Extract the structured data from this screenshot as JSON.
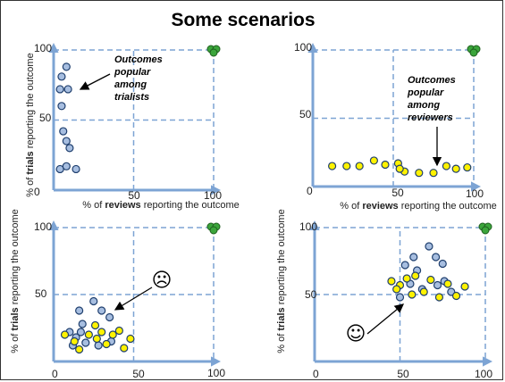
{
  "slide": {
    "title": "Some scenarios",
    "colors": {
      "axis": "#7DA4D4",
      "blue_point": "#A7BEE0",
      "yellow_point": "#FFF200",
      "green_point": "#3BA53B",
      "point_stroke": "#1F3F6E"
    }
  },
  "chart_data": [
    {
      "type": "scatter",
      "ylabel_parts": [
        "% of ",
        "trials",
        " reporting the outcome"
      ],
      "xlabel_parts": [
        "% of ",
        "reviews",
        " reporting the outcome"
      ],
      "xlim": [
        0,
        100
      ],
      "ylim": [
        0,
        100
      ],
      "ticks": {
        "origin": "0",
        "x_mid": "50",
        "x_max": "100",
        "y_mid": "50",
        "y_max": "100"
      },
      "annotation": {
        "lines": [
          "Outcomes",
          "popular",
          "among",
          "trialists"
        ]
      },
      "series": [
        {
          "color": "blue",
          "points": [
            [
              8,
              88
            ],
            [
              5,
              81
            ],
            [
              4,
              72
            ],
            [
              9,
              72
            ],
            [
              5,
              60
            ],
            [
              6,
              42
            ],
            [
              8,
              35
            ],
            [
              10,
              30
            ],
            [
              4,
              15
            ],
            [
              8,
              17
            ],
            [
              14,
              15
            ]
          ]
        },
        {
          "color": "green",
          "points": [
            [
              100,
              100
            ]
          ]
        }
      ]
    },
    {
      "type": "scatter",
      "xlabel_parts": [
        "% of ",
        "reviews",
        " reporting the outcome"
      ],
      "xlim": [
        0,
        100
      ],
      "ylim": [
        0,
        100
      ],
      "ticks": {
        "origin": "0",
        "x_mid": "50",
        "x_max": "100",
        "y_mid": "50",
        "y_max": "100"
      },
      "annotation": {
        "lines": [
          "Outcomes",
          "popular",
          "among",
          "reviewers"
        ]
      },
      "series": [
        {
          "color": "yellow",
          "points": [
            [
              12,
              15
            ],
            [
              21,
              15
            ],
            [
              29,
              15
            ],
            [
              38,
              19
            ],
            [
              45,
              16
            ],
            [
              53,
              17
            ],
            [
              57,
              11
            ],
            [
              66,
              10
            ],
            [
              75,
              10
            ],
            [
              83,
              15
            ],
            [
              89,
              13
            ],
            [
              96,
              14
            ],
            [
              54,
              13
            ]
          ]
        },
        {
          "color": "green",
          "points": [
            [
              100,
              100
            ]
          ]
        }
      ]
    },
    {
      "type": "scatter",
      "ylabel_parts": [
        "% of ",
        "trials",
        " reporting the outcome"
      ],
      "xlim": [
        0,
        100
      ],
      "ylim": [
        0,
        100
      ],
      "ticks": {
        "origin": "0",
        "x_mid": "50",
        "x_max": "100",
        "y_mid": "50",
        "y_max": "100"
      },
      "emoji": "☹",
      "series": [
        {
          "color": "blue",
          "points": [
            [
              16,
              38
            ],
            [
              25,
              45
            ],
            [
              30,
              38
            ],
            [
              35,
              33
            ],
            [
              10,
              22
            ],
            [
              17,
              22
            ],
            [
              12,
              12
            ],
            [
              20,
              14
            ],
            [
              28,
              12
            ],
            [
              36,
              15
            ],
            [
              18,
              28
            ],
            [
              14,
              18
            ]
          ]
        },
        {
          "color": "yellow",
          "points": [
            [
              7,
              20
            ],
            [
              13,
              15
            ],
            [
              22,
              20
            ],
            [
              26,
              27
            ],
            [
              30,
              22
            ],
            [
              33,
              13
            ],
            [
              37,
              20
            ],
            [
              41,
              23
            ],
            [
              44,
              10
            ],
            [
              27,
              17
            ],
            [
              16,
              9
            ],
            [
              48,
              17
            ]
          ]
        },
        {
          "color": "green",
          "points": [
            [
              100,
              100
            ]
          ]
        }
      ]
    },
    {
      "type": "scatter",
      "ylabel_parts": [
        "% of ",
        "trials",
        " reporting the outcome"
      ],
      "xlim": [
        0,
        100
      ],
      "ylim": [
        0,
        100
      ],
      "ticks": {
        "origin": "0",
        "x_mid": "50",
        "x_max": "100",
        "y_mid": "50",
        "y_max": "100"
      },
      "emoji": "☺",
      "series": [
        {
          "color": "blue",
          "points": [
            [
              50,
              48
            ],
            [
              53,
              72
            ],
            [
              60,
              68
            ],
            [
              67,
              86
            ],
            [
              71,
              78
            ],
            [
              75,
              73
            ],
            [
              76,
              60
            ],
            [
              80,
              52
            ],
            [
              56,
              58
            ],
            [
              63,
              54
            ],
            [
              72,
              57
            ],
            [
              58,
              78
            ]
          ]
        },
        {
          "color": "yellow",
          "points": [
            [
              45,
              60
            ],
            [
              50,
              57
            ],
            [
              54,
              62
            ],
            [
              59,
              64
            ],
            [
              64,
              52
            ],
            [
              68,
              61
            ],
            [
              73,
              48
            ],
            [
              78,
              58
            ],
            [
              83,
              49
            ],
            [
              88,
              56
            ],
            [
              48,
              54
            ],
            [
              57,
              50
            ]
          ]
        },
        {
          "color": "green",
          "points": [
            [
              100,
              100
            ]
          ]
        }
      ]
    }
  ]
}
